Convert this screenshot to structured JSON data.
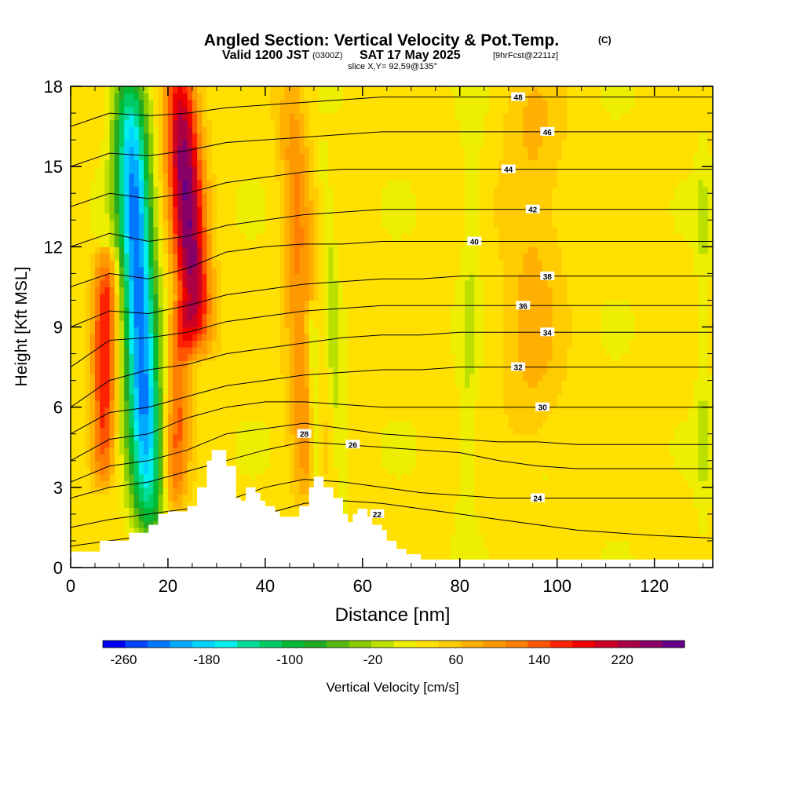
{
  "chart_data": {
    "type": "heatmap",
    "title": "Angled Section: Vertical Velocity & Pot.Temp.",
    "title_suffix": "(C)",
    "subtitle_valid": "Valid 1200 JST",
    "subtitle_utc": "(0300Z)",
    "subtitle_date": "SAT 17 May 2025",
    "subtitle_run": "[9hrFcst@2211z]",
    "slice_label": "slice X,Y= 92,59@135°",
    "xlabel": "Distance [nm]",
    "ylabel": "Height [Kft MSL]",
    "xlim": [
      0,
      132
    ],
    "ylim": [
      0,
      18
    ],
    "x_ticks": [
      "0",
      "20",
      "40",
      "60",
      "80",
      "100",
      "120"
    ],
    "y_ticks": [
      "0",
      "3",
      "6",
      "9",
      "12",
      "15",
      "18"
    ],
    "colorbar_label": "Vertical Velocity [cm/s]",
    "colorbar_ticks": [
      "-260",
      "-180",
      "-100",
      "-20",
      "60",
      "140",
      "220"
    ],
    "colorbar_range": [
      -280,
      280
    ],
    "colorbar_colors": [
      "#0000ee",
      "#0044ff",
      "#0077ff",
      "#00aaff",
      "#00d4ff",
      "#00eeee",
      "#00dd99",
      "#00cc66",
      "#00bb33",
      "#22aa22",
      "#55bb11",
      "#88cc00",
      "#bbe000",
      "#eeee00",
      "#ffe000",
      "#ffcc00",
      "#ffb000",
      "#ff9900",
      "#ff7f00",
      "#ff5500",
      "#ff2200",
      "#ee0000",
      "#cc0022",
      "#aa0044",
      "#880066",
      "#660088"
    ],
    "terrain_kft": [
      [
        0,
        0.6
      ],
      [
        2,
        0.6
      ],
      [
        6,
        1.0
      ],
      [
        10,
        1.0
      ],
      [
        12,
        1.3
      ],
      [
        14,
        1.3
      ],
      [
        16,
        1.6
      ],
      [
        18,
        2.0
      ],
      [
        20,
        2.1
      ],
      [
        22,
        2.1
      ],
      [
        24,
        2.3
      ],
      [
        26,
        3.0
      ],
      [
        28,
        4.0
      ],
      [
        29,
        4.4
      ],
      [
        31,
        4.4
      ],
      [
        32,
        3.8
      ],
      [
        34,
        2.6
      ],
      [
        35,
        2.5
      ],
      [
        36,
        3.0
      ],
      [
        38,
        2.8
      ],
      [
        39,
        2.5
      ],
      [
        40,
        2.3
      ],
      [
        42,
        2.1
      ],
      [
        43,
        1.9
      ],
      [
        45,
        1.9
      ],
      [
        47,
        2.3
      ],
      [
        49,
        3.0
      ],
      [
        50,
        3.4
      ],
      [
        52,
        3.0
      ],
      [
        54,
        2.6
      ],
      [
        56,
        2.0
      ],
      [
        57,
        1.7
      ],
      [
        58,
        2.0
      ],
      [
        59,
        2.2
      ],
      [
        61,
        1.9
      ],
      [
        62,
        1.6
      ],
      [
        64,
        1.4
      ],
      [
        65,
        1.0
      ],
      [
        67,
        0.7
      ],
      [
        69,
        0.5
      ],
      [
        72,
        0.3
      ],
      [
        80,
        0.3
      ],
      [
        132,
        0.3
      ]
    ],
    "theta_series": [
      {
        "name": "22",
        "label_at": [
          63,
          2.0
        ],
        "values_kft": [
          0.8,
          1.0,
          1.2,
          1.3,
          1.5,
          2.0,
          2.4,
          2.5,
          2.4,
          2.2,
          2.0,
          1.8,
          1.6,
          1.4,
          1.3,
          1.2,
          1.1
        ]
      },
      {
        "name": "24",
        "label_at": [
          96,
          2.6
        ],
        "values_kft": [
          1.5,
          1.8,
          2.0,
          2.2,
          2.5,
          3.0,
          3.3,
          3.2,
          3.0,
          2.8,
          2.7,
          2.6,
          2.6,
          2.6,
          2.6,
          2.6,
          2.6
        ]
      },
      {
        "name": "26",
        "label_at": [
          58,
          4.6
        ],
        "values_kft": [
          2.6,
          3.0,
          3.2,
          3.6,
          4.0,
          4.4,
          4.7,
          4.6,
          4.5,
          4.4,
          4.3,
          4.0,
          3.8,
          3.7,
          3.7,
          3.7,
          3.7
        ]
      },
      {
        "name": "28",
        "label_at": [
          48,
          5.0
        ],
        "values_kft": [
          3.2,
          3.8,
          4.0,
          4.4,
          5.0,
          5.2,
          5.4,
          5.2,
          5.0,
          4.9,
          4.8,
          4.7,
          4.7,
          4.6,
          4.6,
          4.6,
          4.6
        ]
      },
      {
        "name": "30",
        "label_at": [
          97,
          6.0
        ],
        "values_kft": [
          4.0,
          4.8,
          5.0,
          5.6,
          6.0,
          6.2,
          6.2,
          6.1,
          6.0,
          6.0,
          6.0,
          6.0,
          6.0,
          6.0,
          6.0,
          6.0,
          6.0
        ]
      },
      {
        "name": "32",
        "label_at": [
          92,
          7.5
        ],
        "values_kft": [
          5.0,
          5.8,
          6.0,
          6.4,
          6.8,
          7.0,
          7.2,
          7.3,
          7.4,
          7.4,
          7.5,
          7.5,
          7.5,
          7.5,
          7.5,
          7.5,
          7.5
        ]
      },
      {
        "name": "34",
        "label_at": [
          98,
          8.8
        ],
        "values_kft": [
          6.0,
          7.0,
          7.4,
          7.6,
          8.0,
          8.2,
          8.4,
          8.6,
          8.7,
          8.7,
          8.8,
          8.8,
          8.8,
          8.8,
          8.8,
          8.8,
          8.8
        ]
      },
      {
        "name": "36",
        "label_at": [
          93,
          9.8
        ],
        "values_kft": [
          7.5,
          8.5,
          8.6,
          8.8,
          9.2,
          9.4,
          9.6,
          9.7,
          9.8,
          9.8,
          9.8,
          9.8,
          9.8,
          9.8,
          9.8,
          9.8,
          9.8
        ]
      },
      {
        "name": "38",
        "label_at": [
          98,
          10.9
        ],
        "values_kft": [
          9.0,
          9.6,
          9.5,
          9.8,
          10.2,
          10.4,
          10.6,
          10.7,
          10.8,
          10.8,
          10.9,
          10.9,
          10.9,
          10.9,
          10.9,
          10.9,
          10.9
        ]
      },
      {
        "name": "40",
        "label_at": [
          83,
          12.2
        ],
        "values_kft": [
          10.5,
          11.0,
          10.8,
          11.2,
          11.8,
          12.0,
          12.1,
          12.1,
          12.2,
          12.2,
          12.2,
          12.2,
          12.2,
          12.2,
          12.2,
          12.2,
          12.2
        ]
      },
      {
        "name": "42",
        "label_at": [
          95,
          13.4
        ],
        "values_kft": [
          12.0,
          12.5,
          12.2,
          12.4,
          12.8,
          13.0,
          13.2,
          13.3,
          13.4,
          13.4,
          13.4,
          13.4,
          13.4,
          13.4,
          13.4,
          13.4,
          13.4
        ]
      },
      {
        "name": "44",
        "label_at": [
          90,
          14.9
        ],
        "values_kft": [
          13.5,
          14.0,
          13.8,
          14.0,
          14.4,
          14.6,
          14.8,
          14.9,
          14.9,
          14.9,
          14.9,
          14.9,
          14.9,
          14.9,
          14.9,
          14.9,
          14.9
        ]
      },
      {
        "name": "46",
        "label_at": [
          98,
          16.3
        ],
        "values_kft": [
          15.0,
          15.5,
          15.4,
          15.6,
          15.9,
          16.0,
          16.1,
          16.2,
          16.3,
          16.3,
          16.3,
          16.3,
          16.3,
          16.3,
          16.3,
          16.3,
          16.3
        ]
      },
      {
        "name": "48",
        "label_at": [
          92,
          17.6
        ],
        "values_kft": [
          16.5,
          17.0,
          16.9,
          17.0,
          17.2,
          17.3,
          17.4,
          17.5,
          17.6,
          17.6,
          17.6,
          17.6,
          17.6,
          17.6,
          17.6,
          17.6,
          17.6
        ]
      }
    ],
    "theta_x_nm": [
      0,
      8,
      16,
      24,
      32,
      40,
      48,
      56,
      64,
      72,
      80,
      88,
      96,
      104,
      112,
      120,
      132
    ],
    "velocity_features": [
      {
        "kind": "downdraft",
        "x_nm": 14,
        "half_width_nm": 3.5,
        "peak_cms": -260,
        "z_kft": [
          2.0,
          18
        ],
        "tilt_nm_per_kft": -0.25
      },
      {
        "kind": "updraft",
        "x_nm": 24,
        "half_width_nm": 3.5,
        "peak_cms": 220,
        "z_kft": [
          9.0,
          18
        ],
        "tilt_nm_per_kft": -0.35
      },
      {
        "kind": "updraft",
        "x_nm": 7,
        "half_width_nm": 2.5,
        "peak_cms": 140,
        "z_kft": [
          4.0,
          11
        ],
        "tilt_nm_per_kft": 0.1
      },
      {
        "kind": "updraft",
        "x_nm": 22,
        "half_width_nm": 2.5,
        "peak_cms": 100,
        "z_kft": [
          3.0,
          9
        ],
        "tilt_nm_per_kft": 0.2
      },
      {
        "kind": "updraft",
        "x_nm": 47,
        "half_width_nm": 3.0,
        "peak_cms": 80,
        "z_kft": [
          3.0,
          18
        ],
        "tilt_nm_per_kft": -0.2
      },
      {
        "kind": "downdraft",
        "x_nm": 50,
        "half_width_nm": 1.2,
        "peak_cms": -60,
        "z_kft": [
          3.5,
          9
        ],
        "tilt_nm_per_kft": -0.2
      },
      {
        "kind": "downdraft",
        "x_nm": 54,
        "half_width_nm": 1.5,
        "peak_cms": -40,
        "z_kft": [
          3.0,
          15
        ],
        "tilt_nm_per_kft": -0.3
      },
      {
        "kind": "downdraft",
        "x_nm": 82,
        "half_width_nm": 2.0,
        "peak_cms": -30,
        "z_kft": [
          0.5,
          18
        ],
        "tilt_nm_per_kft": 0.1
      },
      {
        "kind": "downdraft",
        "x_nm": 130,
        "half_width_nm": 1.5,
        "peak_cms": -30,
        "z_kft": [
          1.0,
          16
        ],
        "tilt_nm_per_kft": 0.0
      },
      {
        "kind": "updraft",
        "x_nm": 95,
        "half_width_nm": 6.0,
        "peak_cms": 40,
        "z_kft": [
          5.0,
          18
        ],
        "tilt_nm_per_kft": 0.0
      }
    ]
  }
}
